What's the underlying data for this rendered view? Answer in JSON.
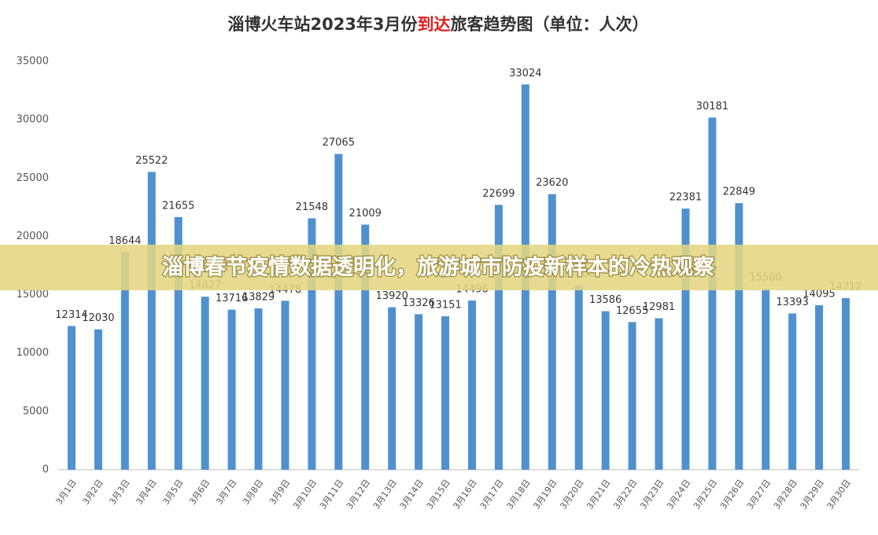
{
  "chart_data": {
    "type": "bar",
    "title_before": "淄博火车站2023年3月份",
    "title_highlight": "到达",
    "title_after": "旅客趋势图（单位：人次）",
    "categories": [
      "3月1日",
      "3月2日",
      "3月3日",
      "3月4日",
      "3月5日",
      "3月6日",
      "3月7日",
      "3月8日",
      "3月9日",
      "3月10日",
      "3月11日",
      "3月12日",
      "3月13日",
      "3月14日",
      "3月15日",
      "3月16日",
      "3月17日",
      "3月18日",
      "3月19日",
      "3月20日",
      "3月21日",
      "3月22日",
      "3月23日",
      "3月24日",
      "3月25日",
      "3月26日",
      "3月27日",
      "3月28日",
      "3月29日",
      "3月30日"
    ],
    "values": [
      12314,
      12030,
      18644,
      25522,
      21655,
      14827,
      13716,
      13829,
      14478,
      21548,
      27065,
      21009,
      13920,
      13326,
      13151,
      14496,
      22699,
      33024,
      23620,
      15800,
      13586,
      12655,
      12981,
      22381,
      30181,
      22849,
      15500,
      13393,
      14095,
      14712
    ],
    "color": "#4f91cf",
    "highlight_color": "#e0201c",
    "ylim": [
      0,
      35000
    ],
    "yticks": [
      0,
      5000,
      10000,
      15000,
      20000,
      25000,
      30000,
      35000
    ],
    "grid": false
  },
  "banner": "淄博春节疫情数据透明化，旅游城市防疫新样本的冷热观察"
}
